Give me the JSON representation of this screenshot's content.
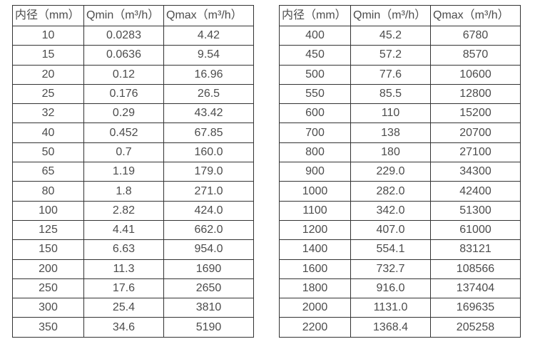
{
  "page": {
    "background_color": "#ffffff",
    "border_color": "#333333",
    "text_color": "#4c4c4c"
  },
  "tables": [
    {
      "name": "flow-rate-table-left",
      "headers": [
        "内径（mm）",
        "Qmin（m³/h）",
        "Qmax（m³/h）"
      ],
      "rows": [
        [
          "10",
          "0.0283",
          "4.42"
        ],
        [
          "15",
          "0.0636",
          "9.54"
        ],
        [
          "20",
          "0.12",
          "16.96"
        ],
        [
          "25",
          "0.176",
          "26.5"
        ],
        [
          "32",
          "0.29",
          "43.42"
        ],
        [
          "40",
          "0.452",
          "67.85"
        ],
        [
          "50",
          "0.7",
          "160.0"
        ],
        [
          "65",
          "1.19",
          "179.0"
        ],
        [
          "80",
          "1.8",
          "271.0"
        ],
        [
          "100",
          "2.82",
          "424.0"
        ],
        [
          "125",
          "4.41",
          "662.0"
        ],
        [
          "150",
          "6.63",
          "954.0"
        ],
        [
          "200",
          "11.3",
          "1690"
        ],
        [
          "250",
          "17.6",
          "2650"
        ],
        [
          "300",
          "25.4",
          "3810"
        ],
        [
          "350",
          "34.6",
          "5190"
        ]
      ]
    },
    {
      "name": "flow-rate-table-right",
      "headers": [
        "内径（mm）",
        "Qmin（m³/h）",
        "Qmax（m³/h）"
      ],
      "rows": [
        [
          "400",
          "45.2",
          "6780"
        ],
        [
          "450",
          "57.2",
          "8570"
        ],
        [
          "500",
          "77.6",
          "10600"
        ],
        [
          "550",
          "85.5",
          "12800"
        ],
        [
          "600",
          "110",
          "15200"
        ],
        [
          "700",
          "138",
          "20700"
        ],
        [
          "800",
          "180",
          "27100"
        ],
        [
          "900",
          "229.0",
          "34300"
        ],
        [
          "1000",
          "282.0",
          "42400"
        ],
        [
          "1100",
          "342.0",
          "51300"
        ],
        [
          "1200",
          "407.0",
          "61000"
        ],
        [
          "1400",
          "554.1",
          "83121"
        ],
        [
          "1600",
          "732.7",
          "108566"
        ],
        [
          "1800",
          "916.0",
          "137404"
        ],
        [
          "2000",
          "1131.0",
          "169635"
        ],
        [
          "2200",
          "1368.4",
          "205258"
        ]
      ]
    }
  ]
}
